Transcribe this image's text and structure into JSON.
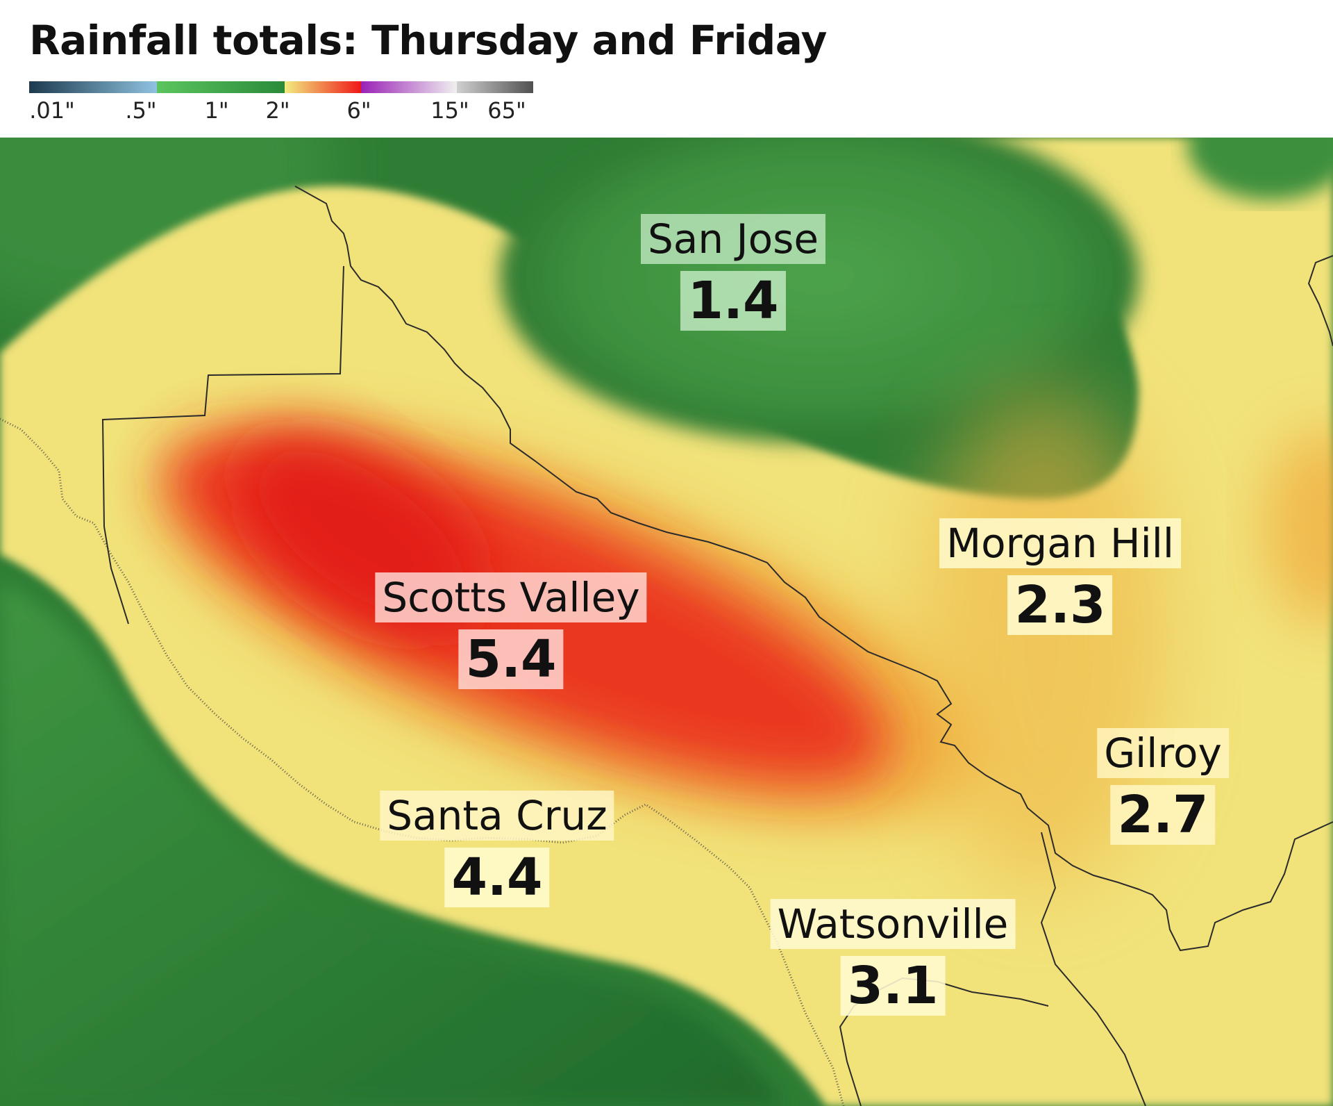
{
  "title": "Rainfall totals: Thursday and Friday",
  "legend": {
    "segments": [
      {
        "color_from": "#1d3a4e",
        "color_to": "#8fc2e0",
        "span": 1.0
      },
      {
        "color_from": "#5cc55e",
        "color_to": "#2a8a3a",
        "span": 1.0
      },
      {
        "color_from": "#f2ec80",
        "color_to": "#ee1818",
        "span": 0.6
      },
      {
        "color_from": "#9a22b6",
        "color_to": "#f0f0f0",
        "span": 0.75
      },
      {
        "color_from": "#d0d0d0",
        "color_to": "#505050",
        "span": 0.6
      }
    ],
    "labels": [
      ".01\"",
      ".5\"",
      "1\"",
      "2\"",
      "6\"",
      "15\"",
      "65\""
    ]
  },
  "colors": {
    "green_dark": "#1f6a2b",
    "green_mid": "#4a9e48",
    "yellow": "#f2e37a",
    "orange": "#f0a030",
    "red": "#e81c17",
    "border": "#2b2b2b"
  },
  "cities": [
    {
      "name": "San Jose",
      "value": "1.4"
    },
    {
      "name": "Morgan Hill",
      "value": "2.3"
    },
    {
      "name": "Scotts Valley",
      "value": "5.4"
    },
    {
      "name": "Gilroy",
      "value": "2.7"
    },
    {
      "name": "Santa Cruz",
      "value": "4.4"
    },
    {
      "name": "Watsonville",
      "value": "3.1"
    }
  ]
}
